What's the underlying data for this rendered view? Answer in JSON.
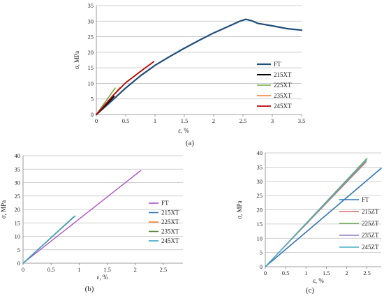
{
  "chart_data": [
    {
      "panel": "(a)",
      "type": "line",
      "xlabel": "ε, %",
      "ylabel": "σ, MPa",
      "xlim": [
        0,
        3.5
      ],
      "ylim": [
        0,
        35
      ],
      "xticks": [
        "0",
        "0.5",
        "1",
        "1.5",
        "2",
        "2.5",
        "3",
        "3.5"
      ],
      "yticks": [
        "0",
        "5",
        "10",
        "15",
        "20",
        "25",
        "30",
        "35"
      ],
      "grid": "horizontal",
      "legend_position": "right",
      "series": [
        {
          "name": "FT",
          "color": "#1f4e79",
          "width": 2.2,
          "points": [
            [
              0,
              0
            ],
            [
              0.25,
              4.2
            ],
            [
              0.5,
              8.5
            ],
            [
              0.75,
              12.4
            ],
            [
              1.0,
              15.8
            ],
            [
              1.25,
              18.6
            ],
            [
              1.5,
              21.3
            ],
            [
              1.75,
              23.8
            ],
            [
              2.0,
              26.2
            ],
            [
              2.25,
              28.3
            ],
            [
              2.45,
              30.0
            ],
            [
              2.55,
              30.6
            ],
            [
              2.65,
              30.1
            ],
            [
              2.75,
              29.3
            ],
            [
              3.0,
              28.5
            ],
            [
              3.25,
              27.6
            ],
            [
              3.5,
              27.1
            ]
          ]
        },
        {
          "name": "215XT",
          "color": "#000000",
          "width": 2.0,
          "points": [
            [
              0,
              0
            ],
            [
              0.3,
              5.8
            ]
          ]
        },
        {
          "name": "225XT",
          "color": "#70ad47",
          "width": 1.6,
          "points": [
            [
              0,
              0
            ],
            [
              0.32,
              8.5
            ]
          ]
        },
        {
          "name": "235XT",
          "color": "#ed7d31",
          "width": 1.6,
          "points": [
            [
              0,
              0
            ],
            [
              0.4,
              8.6
            ]
          ]
        },
        {
          "name": "245XT",
          "color": "#c00000",
          "width": 1.8,
          "points": [
            [
              0,
              0
            ],
            [
              0.3,
              6.4
            ],
            [
              0.5,
              10.2
            ],
            [
              0.75,
              13.8
            ],
            [
              0.98,
              17.0
            ]
          ]
        }
      ]
    },
    {
      "panel": "(b)",
      "type": "line",
      "xlabel": "ε, %",
      "ylabel": "σ, MPa",
      "xlim": [
        0,
        2.85
      ],
      "ylim": [
        0,
        40
      ],
      "xticks": [
        "0",
        "0.5",
        "1",
        "1.5",
        "2",
        "2.5"
      ],
      "yticks": [
        "0",
        "5",
        "10",
        "15",
        "20",
        "25",
        "30",
        "35",
        "40"
      ],
      "grid": "horizontal",
      "legend_position": "right",
      "series": [
        {
          "name": "FT",
          "color": "#b04fc7",
          "width": 1.4,
          "points": [
            [
              0,
              0
            ],
            [
              2.1,
              34.5
            ]
          ]
        },
        {
          "name": "215XT",
          "color": "#2e75b6",
          "width": 1.4,
          "points": [
            [
              0,
              0
            ],
            [
              0.9,
              17.2
            ]
          ]
        },
        {
          "name": "225XT",
          "color": "#ed7d31",
          "width": 1.2,
          "points": [
            [
              0,
              0
            ],
            [
              0.88,
              16.8
            ]
          ]
        },
        {
          "name": "235XT",
          "color": "#548235",
          "width": 1.2,
          "points": [
            [
              0,
              0
            ],
            [
              0.92,
              17.4
            ]
          ]
        },
        {
          "name": "245XT",
          "color": "#2fa6c4",
          "width": 1.4,
          "points": [
            [
              0,
              0
            ],
            [
              0.93,
              17.6
            ]
          ]
        }
      ]
    },
    {
      "panel": "(c)",
      "type": "line",
      "xlabel": "ε, %",
      "ylabel": "σ, MPa",
      "xlim": [
        0,
        2.85
      ],
      "ylim": [
        0,
        40
      ],
      "xticks": [
        "0",
        "0.5",
        "1",
        "1.5",
        "2",
        "2.5"
      ],
      "yticks": [
        "0",
        "5",
        "10",
        "15",
        "20",
        "25",
        "30",
        "35",
        "40"
      ],
      "grid": "horizontal",
      "legend_position": "right",
      "series": [
        {
          "name": "FT",
          "color": "#2e75b6",
          "width": 1.6,
          "points": [
            [
              0,
              0
            ],
            [
              2.85,
              34.6
            ]
          ]
        },
        {
          "name": "215ZT",
          "color": "#e06666",
          "width": 1.3,
          "points": [
            [
              0,
              0
            ],
            [
              2.48,
              36.8
            ]
          ]
        },
        {
          "name": "225ZT",
          "color": "#6aa84f",
          "width": 1.3,
          "points": [
            [
              0,
              0
            ],
            [
              2.5,
              38.1
            ]
          ]
        },
        {
          "name": "235ZT",
          "color": "#8e7cc3",
          "width": 1.3,
          "points": [
            [
              0,
              0
            ],
            [
              2.47,
              37.2
            ]
          ]
        },
        {
          "name": "245ZT",
          "color": "#45b0c8",
          "width": 1.3,
          "points": [
            [
              0,
              0
            ],
            [
              2.5,
              37.6
            ]
          ]
        }
      ]
    }
  ]
}
